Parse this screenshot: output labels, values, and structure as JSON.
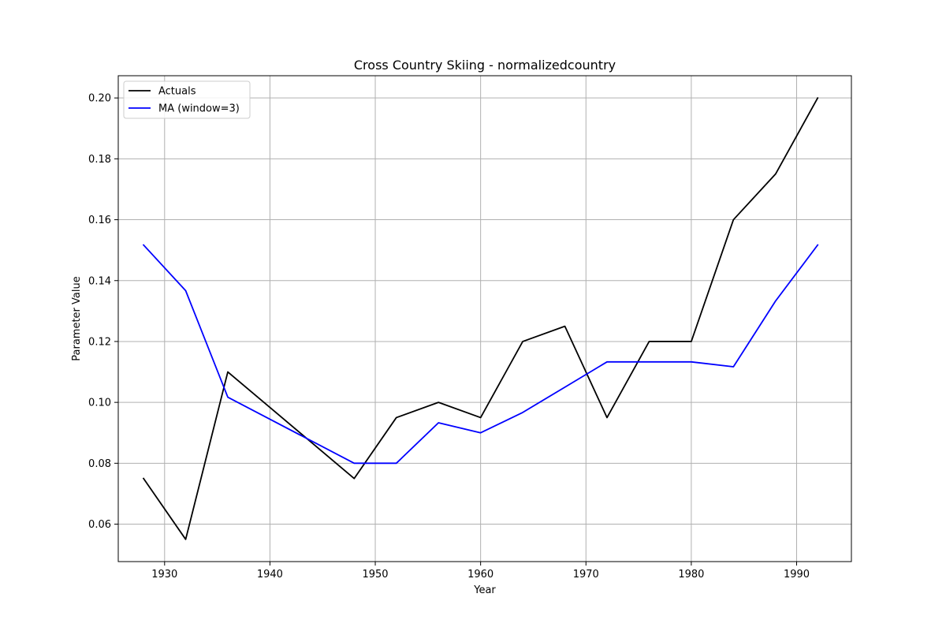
{
  "chart_data": {
    "type": "line",
    "title": "Cross Country Skiing - normalizedcountry",
    "xlabel": "Year",
    "ylabel": "Parameter Value",
    "xlim": [
      1925.6,
      1995.2
    ],
    "ylim": [
      0.0477,
      0.2073
    ],
    "xticks": [
      1930,
      1940,
      1950,
      1960,
      1970,
      1980,
      1990
    ],
    "yticks": [
      0.06,
      0.08,
      0.1,
      0.12,
      0.14,
      0.16,
      0.18,
      0.2
    ],
    "ytick_labels": [
      "0.06",
      "0.08",
      "0.10",
      "0.12",
      "0.14",
      "0.16",
      "0.18",
      "0.20"
    ],
    "grid": true,
    "legend_position": "top-left",
    "series": [
      {
        "name": "Actuals",
        "color": "#000000",
        "x": [
          1928,
          1932,
          1936,
          1948,
          1952,
          1956,
          1960,
          1964,
          1968,
          1972,
          1976,
          1980,
          1984,
          1988,
          1992
        ],
        "y": [
          0.075,
          0.055,
          0.11,
          0.075,
          0.095,
          0.1,
          0.095,
          0.12,
          0.125,
          0.095,
          0.12,
          0.12,
          0.16,
          0.175,
          0.2
        ]
      },
      {
        "name": "MA (window=3)",
        "color": "#0000ff",
        "x": [
          1928,
          1932,
          1936,
          1948,
          1952,
          1956,
          1960,
          1964,
          1968,
          1972,
          1976,
          1980,
          1984,
          1988,
          1992
        ],
        "y": [
          0.1517,
          0.1367,
          0.1017,
          0.08,
          0.08,
          0.0933,
          0.09,
          0.0967,
          0.105,
          0.1133,
          0.1133,
          0.1133,
          0.1117,
          0.1333,
          0.1517
        ]
      }
    ]
  }
}
